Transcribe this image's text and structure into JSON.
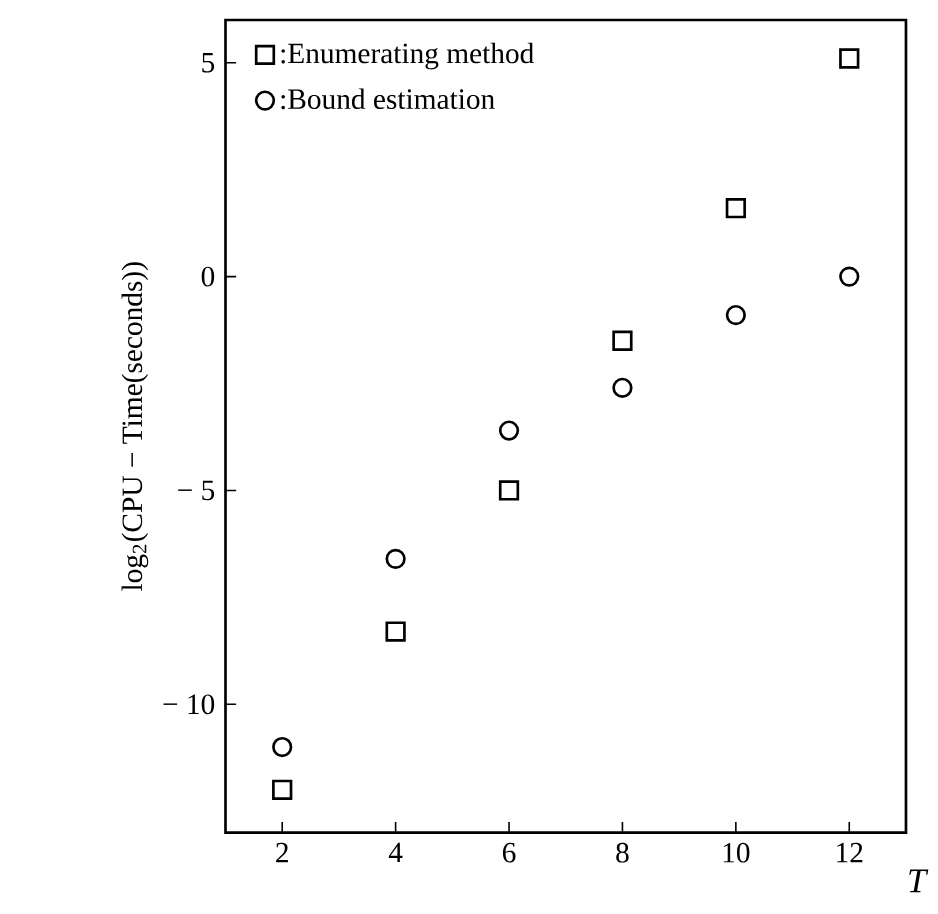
{
  "chart_data": {
    "type": "scatter",
    "xlabel": "T",
    "ylabel": "log$_{2}$(CPU − Time(seconds))",
    "x": [
      2,
      4,
      6,
      8,
      10,
      12
    ],
    "series": [
      {
        "name": ":Enumerating method",
        "color": "#000000",
        "marker": "square",
        "values": [
          -12.0,
          -8.3,
          -5.0,
          -1.5,
          1.6,
          5.1
        ]
      },
      {
        "name": ":Bound estimation",
        "color": "#000000",
        "marker": "circle",
        "values": [
          -11.0,
          -6.6,
          -3.6,
          -2.6,
          -0.9,
          0.0
        ]
      }
    ],
    "xlim": [
      1,
      13
    ],
    "ylim": [
      -13,
      6
    ],
    "xticks": [
      2,
      4,
      6,
      8,
      10,
      12
    ],
    "yticks": [
      {
        "value": -10,
        "label": "− 10"
      },
      {
        "value": -5,
        "label": "− 5"
      },
      0,
      5
    ],
    "legend": "top left",
    "grid": false
  }
}
